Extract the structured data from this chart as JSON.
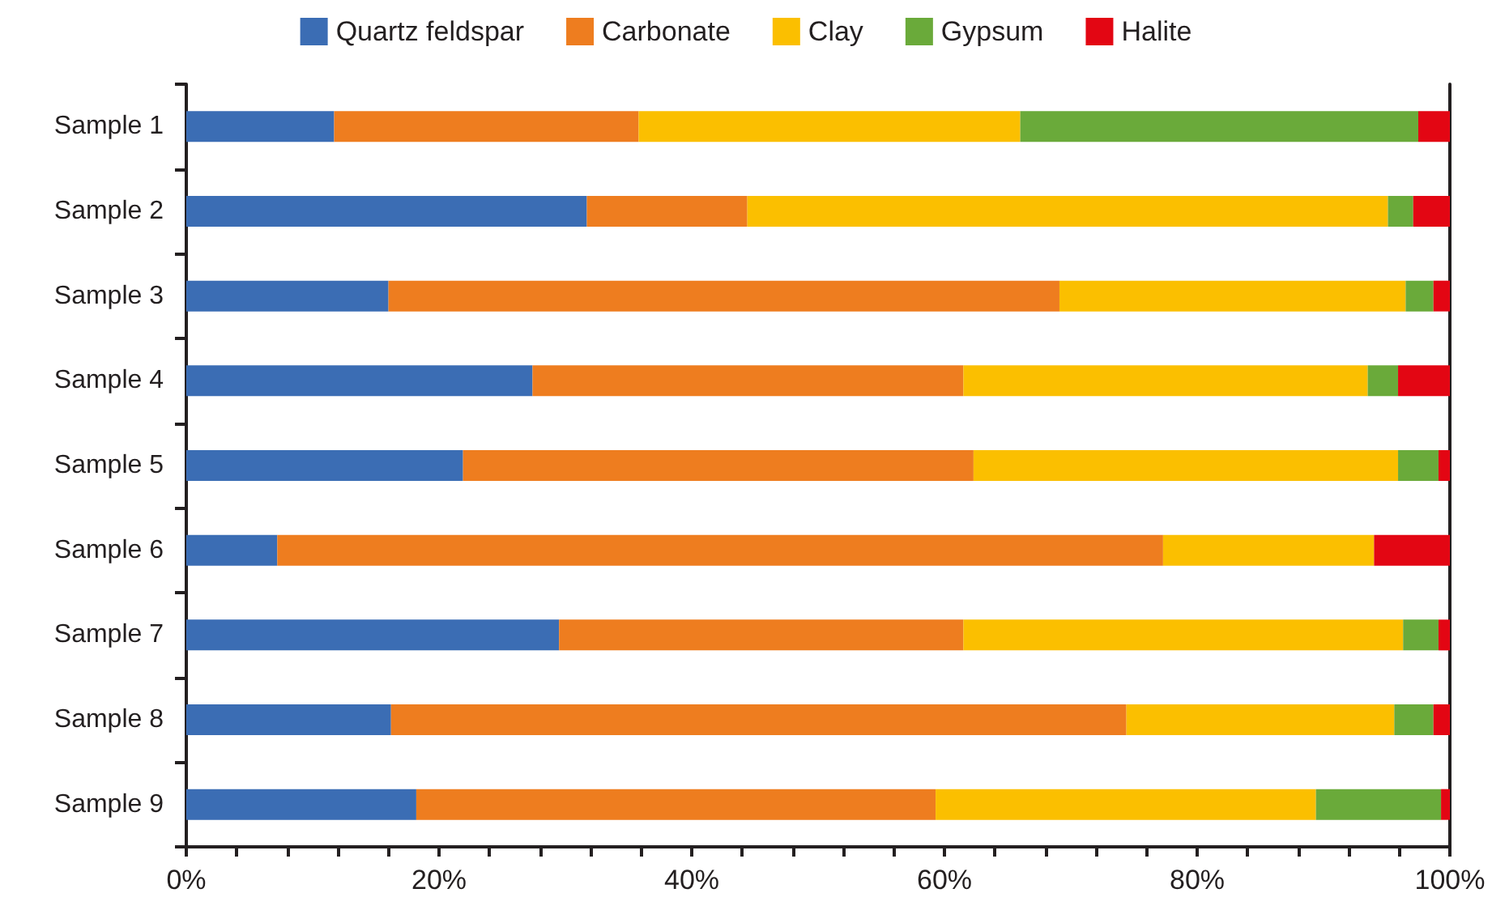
{
  "chart_data": {
    "type": "bar",
    "orientation": "horizontal",
    "stacked": true,
    "categories": [
      "Sample 1",
      "Sample 2",
      "Sample 3",
      "Sample 4",
      "Sample 5",
      "Sample 6",
      "Sample 7",
      "Sample 8",
      "Sample 9"
    ],
    "series": [
      {
        "name": "Quartz feldspar",
        "color": "#3b6db4",
        "values": [
          11.7,
          31.7,
          16.0,
          27.4,
          21.9,
          7.2,
          29.5,
          16.2,
          18.2
        ]
      },
      {
        "name": "Carbonate",
        "color": "#ee7d1f",
        "values": [
          24.1,
          12.7,
          53.1,
          34.1,
          40.4,
          70.1,
          32.0,
          58.2,
          41.1
        ]
      },
      {
        "name": "Clay",
        "color": "#fbbf00",
        "values": [
          30.2,
          50.7,
          27.4,
          32.0,
          33.6,
          16.7,
          34.8,
          21.2,
          30.1
        ]
      },
      {
        "name": "Gypsum",
        "color": "#6aaa3a",
        "values": [
          31.5,
          2.0,
          2.2,
          2.4,
          3.2,
          0,
          2.8,
          3.1,
          9.9
        ]
      },
      {
        "name": "Halite",
        "color": "#e30613",
        "values": [
          2.5,
          2.9,
          1.3,
          4.1,
          0.9,
          6.0,
          0.9,
          1.3,
          0.7
        ]
      }
    ],
    "xlim": [
      0,
      100
    ],
    "xticks": [
      {
        "value": 0,
        "label": "0%"
      },
      {
        "value": 4,
        "label": null
      },
      {
        "value": 8,
        "label": null
      },
      {
        "value": 12,
        "label": null
      },
      {
        "value": 16,
        "label": null
      },
      {
        "value": 20,
        "label": "20%"
      },
      {
        "value": 24,
        "label": null
      },
      {
        "value": 28,
        "label": null
      },
      {
        "value": 32,
        "label": null
      },
      {
        "value": 36,
        "label": null
      },
      {
        "value": 40,
        "label": "40%"
      },
      {
        "value": 44,
        "label": null
      },
      {
        "value": 48,
        "label": null
      },
      {
        "value": 52,
        "label": null
      },
      {
        "value": 56,
        "label": null
      },
      {
        "value": 60,
        "label": "60%"
      },
      {
        "value": 64,
        "label": null
      },
      {
        "value": 68,
        "label": null
      },
      {
        "value": 72,
        "label": null
      },
      {
        "value": 76,
        "label": null
      },
      {
        "value": 80,
        "label": "80%"
      },
      {
        "value": 84,
        "label": null
      },
      {
        "value": 88,
        "label": null
      },
      {
        "value": 92,
        "label": null
      },
      {
        "value": 96,
        "label": null
      },
      {
        "value": 100,
        "label": "100%"
      }
    ],
    "grid": false,
    "legend": "top"
  }
}
